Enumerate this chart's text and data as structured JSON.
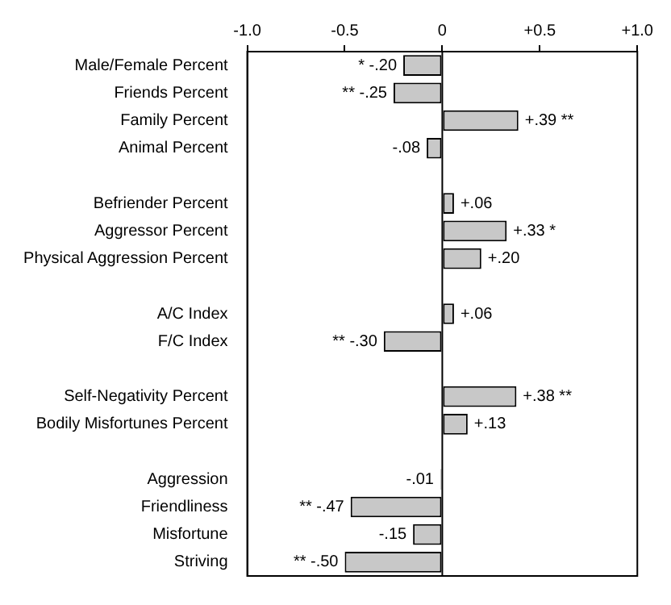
{
  "chart_data": {
    "type": "bar",
    "orientation": "horizontal",
    "categories": [
      "Male/Female Percent",
      "Friends Percent",
      "Family Percent",
      "Animal Percent",
      null,
      "Befriender Percent",
      "Aggressor Percent",
      "Physical Aggression Percent",
      null,
      "A/C Index",
      "F/C Index",
      null,
      "Self-Negativity Percent",
      "Bodily Misfortunes Percent",
      null,
      "Aggression",
      "Friendliness",
      "Misfortune",
      "Striving"
    ],
    "values": [
      -0.2,
      -0.25,
      0.39,
      -0.08,
      null,
      0.06,
      0.33,
      0.2,
      null,
      0.06,
      -0.3,
      null,
      0.38,
      0.13,
      null,
      -0.01,
      -0.47,
      -0.15,
      -0.5
    ],
    "value_labels": [
      "* -.20",
      "** -.25",
      "+.39 **",
      "-.08",
      null,
      "+.06",
      "+.33 *",
      "+.20",
      null,
      "+.06",
      "** -.30",
      null,
      "+.38 **",
      "+.13",
      null,
      "-.01",
      "** -.47",
      "-.15",
      "** -.50"
    ],
    "color": "#c8c8c8",
    "xlim": [
      -1,
      1
    ],
    "xticks": [
      {
        "value": -1,
        "label": "-1.0"
      },
      {
        "value": -0.5,
        "label": "-0.5"
      },
      0,
      {
        "value": 0.5,
        "label": "+0.5"
      },
      {
        "value": 1,
        "label": "+1.0"
      }
    ],
    "ref_lines": [
      {
        "axis": "x",
        "value": 0,
        "color": "#000000"
      }
    ],
    "grid": false,
    "legend": false
  }
}
